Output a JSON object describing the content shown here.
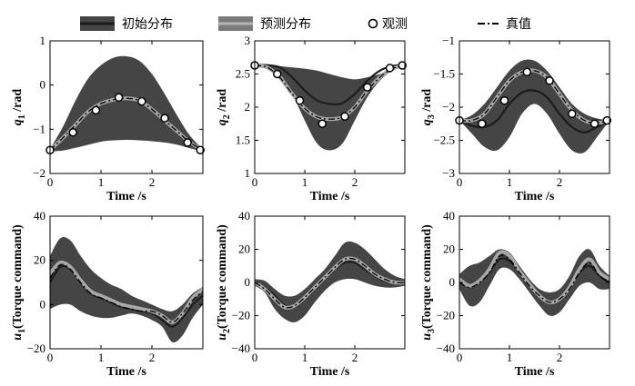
{
  "legend": {
    "initial": "初始分布",
    "predicted": "预测分布",
    "observed": "观测",
    "truth": "真值"
  },
  "colors": {
    "band": "#454545",
    "initial_mean": "#1c1c1c",
    "predicted_mean": "#a8a8a8",
    "truth": "#000000",
    "marker_fill": "#ffffff"
  },
  "chart_data": [
    {
      "type": "area",
      "ylabel_sym": "q",
      "ylabel_sub": "1",
      "ylabel_rest": " /rad",
      "xlabel": "Time /s",
      "xlim": [
        0,
        3
      ],
      "ylim": [
        -2,
        1
      ],
      "xticks": [
        0,
        1,
        2
      ],
      "yticks": [
        -2,
        -1,
        0,
        1
      ],
      "ytick_labels": [
        "−2",
        "−1",
        "0",
        "1"
      ],
      "x": [
        0,
        0.25,
        0.5,
        0.75,
        1.0,
        1.25,
        1.5,
        1.75,
        2.0,
        2.25,
        2.5,
        2.75,
        3.0
      ],
      "band_upper": [
        -1.45,
        -0.95,
        -0.35,
        0.15,
        0.45,
        0.62,
        0.65,
        0.55,
        0.25,
        -0.2,
        -0.7,
        -1.15,
        -1.45
      ],
      "band_lower": [
        -1.5,
        -1.48,
        -1.42,
        -1.35,
        -1.28,
        -1.25,
        -1.24,
        -1.25,
        -1.27,
        -1.3,
        -1.35,
        -1.43,
        -1.5
      ],
      "initial_mean": [
        -1.47,
        -1.2,
        -0.9,
        -0.6,
        -0.42,
        -0.33,
        -0.3,
        -0.35,
        -0.55,
        -0.8,
        -1.05,
        -1.3,
        -1.47
      ],
      "predicted_mean": [
        -1.47,
        -1.2,
        -0.9,
        -0.6,
        -0.42,
        -0.33,
        -0.3,
        -0.35,
        -0.55,
        -0.8,
        -1.05,
        -1.3,
        -1.47
      ],
      "truth": [
        -1.47,
        -1.2,
        -0.9,
        -0.6,
        -0.42,
        -0.33,
        -0.3,
        -0.35,
        -0.55,
        -0.8,
        -1.05,
        -1.3,
        -1.47
      ],
      "observations": {
        "x": [
          0,
          0.45,
          0.9,
          1.35,
          1.8,
          2.25,
          2.7,
          2.95
        ],
        "y": [
          -1.47,
          -1.07,
          -0.57,
          -0.28,
          -0.37,
          -0.75,
          -1.3,
          -1.47
        ]
      }
    },
    {
      "type": "area",
      "ylabel_sym": "q",
      "ylabel_sub": "2",
      "ylabel_rest": " /rad",
      "xlabel": "Time /s",
      "xlim": [
        0,
        3
      ],
      "ylim": [
        1,
        3
      ],
      "xticks": [
        0,
        1,
        2
      ],
      "yticks": [
        1,
        1.5,
        2,
        2.5,
        3
      ],
      "ytick_labels": [
        "1",
        "1.5",
        "2",
        "2.5",
        "3"
      ],
      "x": [
        0,
        0.25,
        0.5,
        0.75,
        1.0,
        1.25,
        1.5,
        1.75,
        2.0,
        2.25,
        2.5,
        2.75,
        3.0
      ],
      "band_upper": [
        2.65,
        2.65,
        2.62,
        2.6,
        2.58,
        2.55,
        2.5,
        2.45,
        2.42,
        2.45,
        2.5,
        2.58,
        2.65
      ],
      "band_lower": [
        2.62,
        2.6,
        2.5,
        2.2,
        1.8,
        1.45,
        1.35,
        1.45,
        1.8,
        2.15,
        2.4,
        2.55,
        2.62
      ],
      "initial_mean": [
        2.64,
        2.63,
        2.6,
        2.45,
        2.25,
        2.1,
        2.05,
        2.06,
        2.2,
        2.4,
        2.55,
        2.62,
        2.64
      ],
      "predicted_mean": [
        2.63,
        2.6,
        2.45,
        2.2,
        1.98,
        1.85,
        1.82,
        1.85,
        2.0,
        2.25,
        2.45,
        2.58,
        2.63
      ],
      "truth": [
        2.63,
        2.6,
        2.45,
        2.2,
        1.98,
        1.85,
        1.82,
        1.85,
        2.0,
        2.25,
        2.45,
        2.58,
        2.63
      ],
      "observations": {
        "x": [
          0,
          0.45,
          0.9,
          1.35,
          1.8,
          2.25,
          2.7,
          2.95
        ],
        "y": [
          2.63,
          2.5,
          2.1,
          1.75,
          1.86,
          2.3,
          2.59,
          2.63
        ]
      }
    },
    {
      "type": "area",
      "ylabel_sym": "q",
      "ylabel_sub": "3",
      "ylabel_rest": " /rad",
      "xlabel": "Time /s",
      "xlim": [
        0,
        3
      ],
      "ylim": [
        -3,
        -1
      ],
      "xticks": [
        0,
        1,
        2
      ],
      "yticks": [
        -3,
        -2.5,
        -2,
        -1.5,
        -1
      ],
      "ytick_labels": [
        "−3",
        "−2.5",
        "−2",
        "−1.5",
        "−1"
      ],
      "x": [
        0,
        0.25,
        0.5,
        0.75,
        1.0,
        1.25,
        1.5,
        1.75,
        2.0,
        2.25,
        2.5,
        2.75,
        3.0
      ],
      "band_upper": [
        -2.2,
        -2.12,
        -1.95,
        -1.7,
        -1.45,
        -1.3,
        -1.3,
        -1.45,
        -1.7,
        -1.95,
        -2.1,
        -2.17,
        -2.2
      ],
      "band_lower": [
        -2.2,
        -2.4,
        -2.6,
        -2.65,
        -2.45,
        -2.1,
        -1.95,
        -2.1,
        -2.4,
        -2.65,
        -2.68,
        -2.45,
        -2.2
      ],
      "initial_mean": [
        -2.2,
        -2.28,
        -2.3,
        -2.2,
        -1.95,
        -1.78,
        -1.75,
        -1.85,
        -2.1,
        -2.3,
        -2.38,
        -2.3,
        -2.2
      ],
      "predicted_mean": [
        -2.2,
        -2.2,
        -2.1,
        -1.85,
        -1.6,
        -1.47,
        -1.45,
        -1.55,
        -1.8,
        -2.05,
        -2.2,
        -2.24,
        -2.2
      ],
      "truth": [
        -2.2,
        -2.2,
        -2.1,
        -1.85,
        -1.6,
        -1.47,
        -1.45,
        -1.55,
        -1.8,
        -2.05,
        -2.2,
        -2.24,
        -2.2
      ],
      "observations": {
        "x": [
          0,
          0.45,
          0.9,
          1.35,
          1.8,
          2.25,
          2.7,
          2.95
        ],
        "y": [
          -2.2,
          -2.25,
          -1.9,
          -1.47,
          -1.6,
          -2.1,
          -2.25,
          -2.2
        ]
      }
    },
    {
      "type": "area",
      "ylabel_sym": "u",
      "ylabel_sub": "1",
      "ylabel_rest": "(Torque command)",
      "xlabel": "Time /s",
      "xlim": [
        0,
        3
      ],
      "ylim": [
        -20,
        40
      ],
      "xticks": [
        0,
        1,
        2
      ],
      "yticks": [
        -20,
        0,
        20,
        40
      ],
      "ytick_labels": [
        "−20",
        "0",
        "20",
        "40"
      ],
      "x": [
        0,
        0.2,
        0.4,
        0.6,
        0.8,
        1.0,
        1.2,
        1.4,
        1.6,
        1.8,
        2.0,
        2.2,
        2.4,
        2.6,
        2.8,
        3.0
      ],
      "band_upper": [
        22,
        30,
        29,
        22,
        16,
        12,
        9,
        7,
        4,
        2,
        0,
        -2,
        -3,
        0,
        5,
        8
      ],
      "band_lower": [
        -2,
        0,
        0,
        -3,
        -5,
        -6,
        -6,
        -5,
        -4,
        -5,
        -7,
        -10,
        -17,
        -14,
        -6,
        0
      ],
      "initial_mean": [
        10,
        17,
        16,
        10,
        5,
        3,
        1,
        -1,
        -2,
        -3,
        -4,
        -7,
        -10,
        -6,
        0,
        4
      ],
      "predicted_mean": [
        14,
        19,
        17,
        11,
        6,
        4,
        2,
        0,
        -1,
        -2,
        -3,
        -5,
        -8,
        -4,
        3,
        7
      ],
      "truth": [
        12,
        18,
        16,
        10,
        5,
        3,
        1,
        -1,
        -2,
        -3,
        -3,
        -5,
        -8,
        -4,
        2,
        6
      ]
    },
    {
      "type": "area",
      "ylabel_sym": "u",
      "ylabel_sub": "2",
      "ylabel_rest": "(Torque command)",
      "xlabel": "Time /s",
      "xlim": [
        0,
        3
      ],
      "ylim": [
        -40,
        40
      ],
      "xticks": [
        0,
        1,
        2
      ],
      "yticks": [
        -40,
        -20,
        0,
        20,
        40
      ],
      "ytick_labels": [
        "−40",
        "−20",
        "0",
        "20",
        "40"
      ],
      "x": [
        0,
        0.2,
        0.4,
        0.6,
        0.8,
        1.0,
        1.2,
        1.4,
        1.6,
        1.8,
        2.0,
        2.2,
        2.4,
        2.6,
        2.8,
        3.0
      ],
      "band_upper": [
        2,
        1,
        -4,
        -8,
        -8,
        -4,
        2,
        8,
        16,
        24,
        24,
        20,
        14,
        8,
        4,
        2
      ],
      "band_lower": [
        -2,
        -6,
        -16,
        -22,
        -24,
        -20,
        -12,
        -5,
        0,
        2,
        2,
        0,
        -2,
        -3,
        -3,
        -2
      ],
      "initial_mean": [
        0,
        -3,
        -8,
        -14,
        -15,
        -10,
        -4,
        2,
        8,
        12,
        12,
        8,
        4,
        1,
        0,
        0
      ],
      "predicted_mean": [
        0,
        -4,
        -10,
        -15,
        -14,
        -9,
        -3,
        3,
        9,
        14,
        14,
        10,
        5,
        2,
        0,
        0
      ],
      "truth": [
        0,
        -4,
        -10,
        -15,
        -14,
        -9,
        -3,
        3,
        9,
        14,
        14,
        10,
        5,
        2,
        0,
        0
      ]
    },
    {
      "type": "area",
      "ylabel_sym": "u",
      "ylabel_sub": "3",
      "ylabel_rest": "(Torque command)",
      "xlabel": "Time /s",
      "xlim": [
        0,
        3
      ],
      "ylim": [
        -40,
        40
      ],
      "xticks": [
        0,
        1,
        2
      ],
      "yticks": [
        -40,
        -20,
        0,
        20,
        40
      ],
      "ytick_labels": [
        "−40",
        "−20",
        "0",
        "20",
        "40"
      ],
      "x": [
        0,
        0.2,
        0.4,
        0.6,
        0.8,
        1.0,
        1.2,
        1.4,
        1.6,
        1.8,
        2.0,
        2.2,
        2.4,
        2.6,
        2.8,
        3.0
      ],
      "band_upper": [
        5,
        10,
        12,
        16,
        20,
        18,
        10,
        2,
        -4,
        -6,
        -4,
        4,
        16,
        20,
        10,
        4
      ],
      "band_lower": [
        -4,
        -14,
        -12,
        -2,
        8,
        8,
        2,
        -6,
        -14,
        -20,
        -18,
        -10,
        -2,
        0,
        -4,
        -4
      ],
      "initial_mean": [
        0,
        -2,
        0,
        6,
        14,
        13,
        6,
        -2,
        -8,
        -12,
        -10,
        -4,
        6,
        10,
        4,
        0
      ],
      "predicted_mean": [
        2,
        -2,
        1,
        8,
        18,
        16,
        7,
        -1,
        -8,
        -12,
        -10,
        -3,
        8,
        14,
        6,
        2
      ],
      "truth": [
        0,
        -3,
        0,
        6,
        16,
        14,
        6,
        -2,
        -8,
        -12,
        -10,
        -4,
        6,
        12,
        4,
        0
      ]
    }
  ]
}
